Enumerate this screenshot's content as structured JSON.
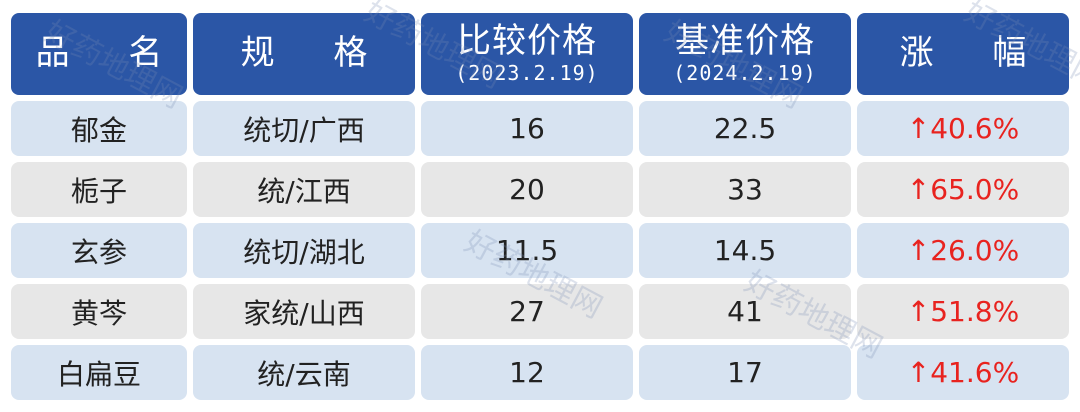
{
  "header": {
    "name": "品 名",
    "spec": "规 格",
    "compare_price": "比较价格",
    "compare_date": "(2023.2.19)",
    "base_price": "基准价格",
    "base_date": "(2024.2.19)",
    "change": "涨 幅"
  },
  "rows": [
    {
      "name": "郁金",
      "spec": "统切/广西",
      "compare": "16",
      "base": "22.5",
      "change": "↑40.6%"
    },
    {
      "name": "栀子",
      "spec": "统/江西",
      "compare": "20",
      "base": "33",
      "change": "↑65.0%"
    },
    {
      "name": "玄参",
      "spec": "统切/湖北",
      "compare": "11.5",
      "base": "14.5",
      "change": "↑26.0%"
    },
    {
      "name": "黄芩",
      "spec": "家统/山西",
      "compare": "27",
      "base": "41",
      "change": "↑51.8%"
    },
    {
      "name": "白扁豆",
      "spec": "统/云南",
      "compare": "12",
      "base": "17",
      "change": "↑41.6%"
    }
  ],
  "watermark": "好药地理网",
  "colors": {
    "header_bg": "#2b56a6",
    "row_blue": "#d7e3f1",
    "row_gray": "#e7e7e7",
    "increase": "#e8231f"
  }
}
